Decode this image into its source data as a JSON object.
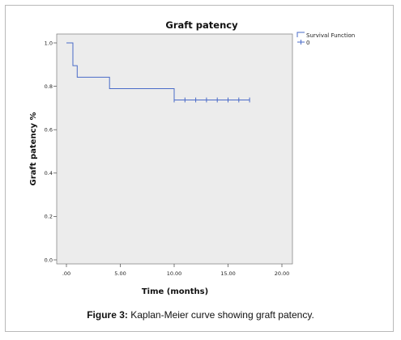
{
  "caption": {
    "label": "Figure 3:",
    "text": "Kaplan-Meier curve showing graft patency."
  },
  "colors": {
    "plot_background": "#ececec",
    "survival_line": "#4a6bc8"
  },
  "chart_data": {
    "type": "line",
    "title": "Graft patency",
    "xlabel": "Time (months)",
    "ylabel": "Graft patency %",
    "xlim": [
      0,
      20
    ],
    "ylim": [
      0,
      1.0
    ],
    "x_ticks": [
      0,
      5,
      10,
      15,
      20
    ],
    "x_tick_labels": [
      ".00",
      "5.00",
      "10.00",
      "15.00",
      "20.00"
    ],
    "y_ticks": [
      0,
      0.2,
      0.4,
      0.6,
      0.8,
      1.0
    ],
    "y_tick_labels": [
      "0.0",
      "0.2",
      "0.4",
      "0.6",
      "0.8",
      "1.0"
    ],
    "grid": false,
    "legend_position": "top-right",
    "series": [
      {
        "name": "Survival Function",
        "step": true,
        "x": [
          0,
          0.6,
          1.0,
          4.0,
          10.0,
          17.0
        ],
        "y": [
          1.0,
          0.895,
          0.842,
          0.789,
          0.737,
          0.737
        ]
      }
    ],
    "censored": {
      "name": "0",
      "x": [
        10.0,
        11.0,
        12.0,
        13.0,
        14.0,
        15.0,
        16.0,
        17.0
      ],
      "y": [
        0.737,
        0.737,
        0.737,
        0.737,
        0.737,
        0.737,
        0.737,
        0.737
      ]
    }
  }
}
